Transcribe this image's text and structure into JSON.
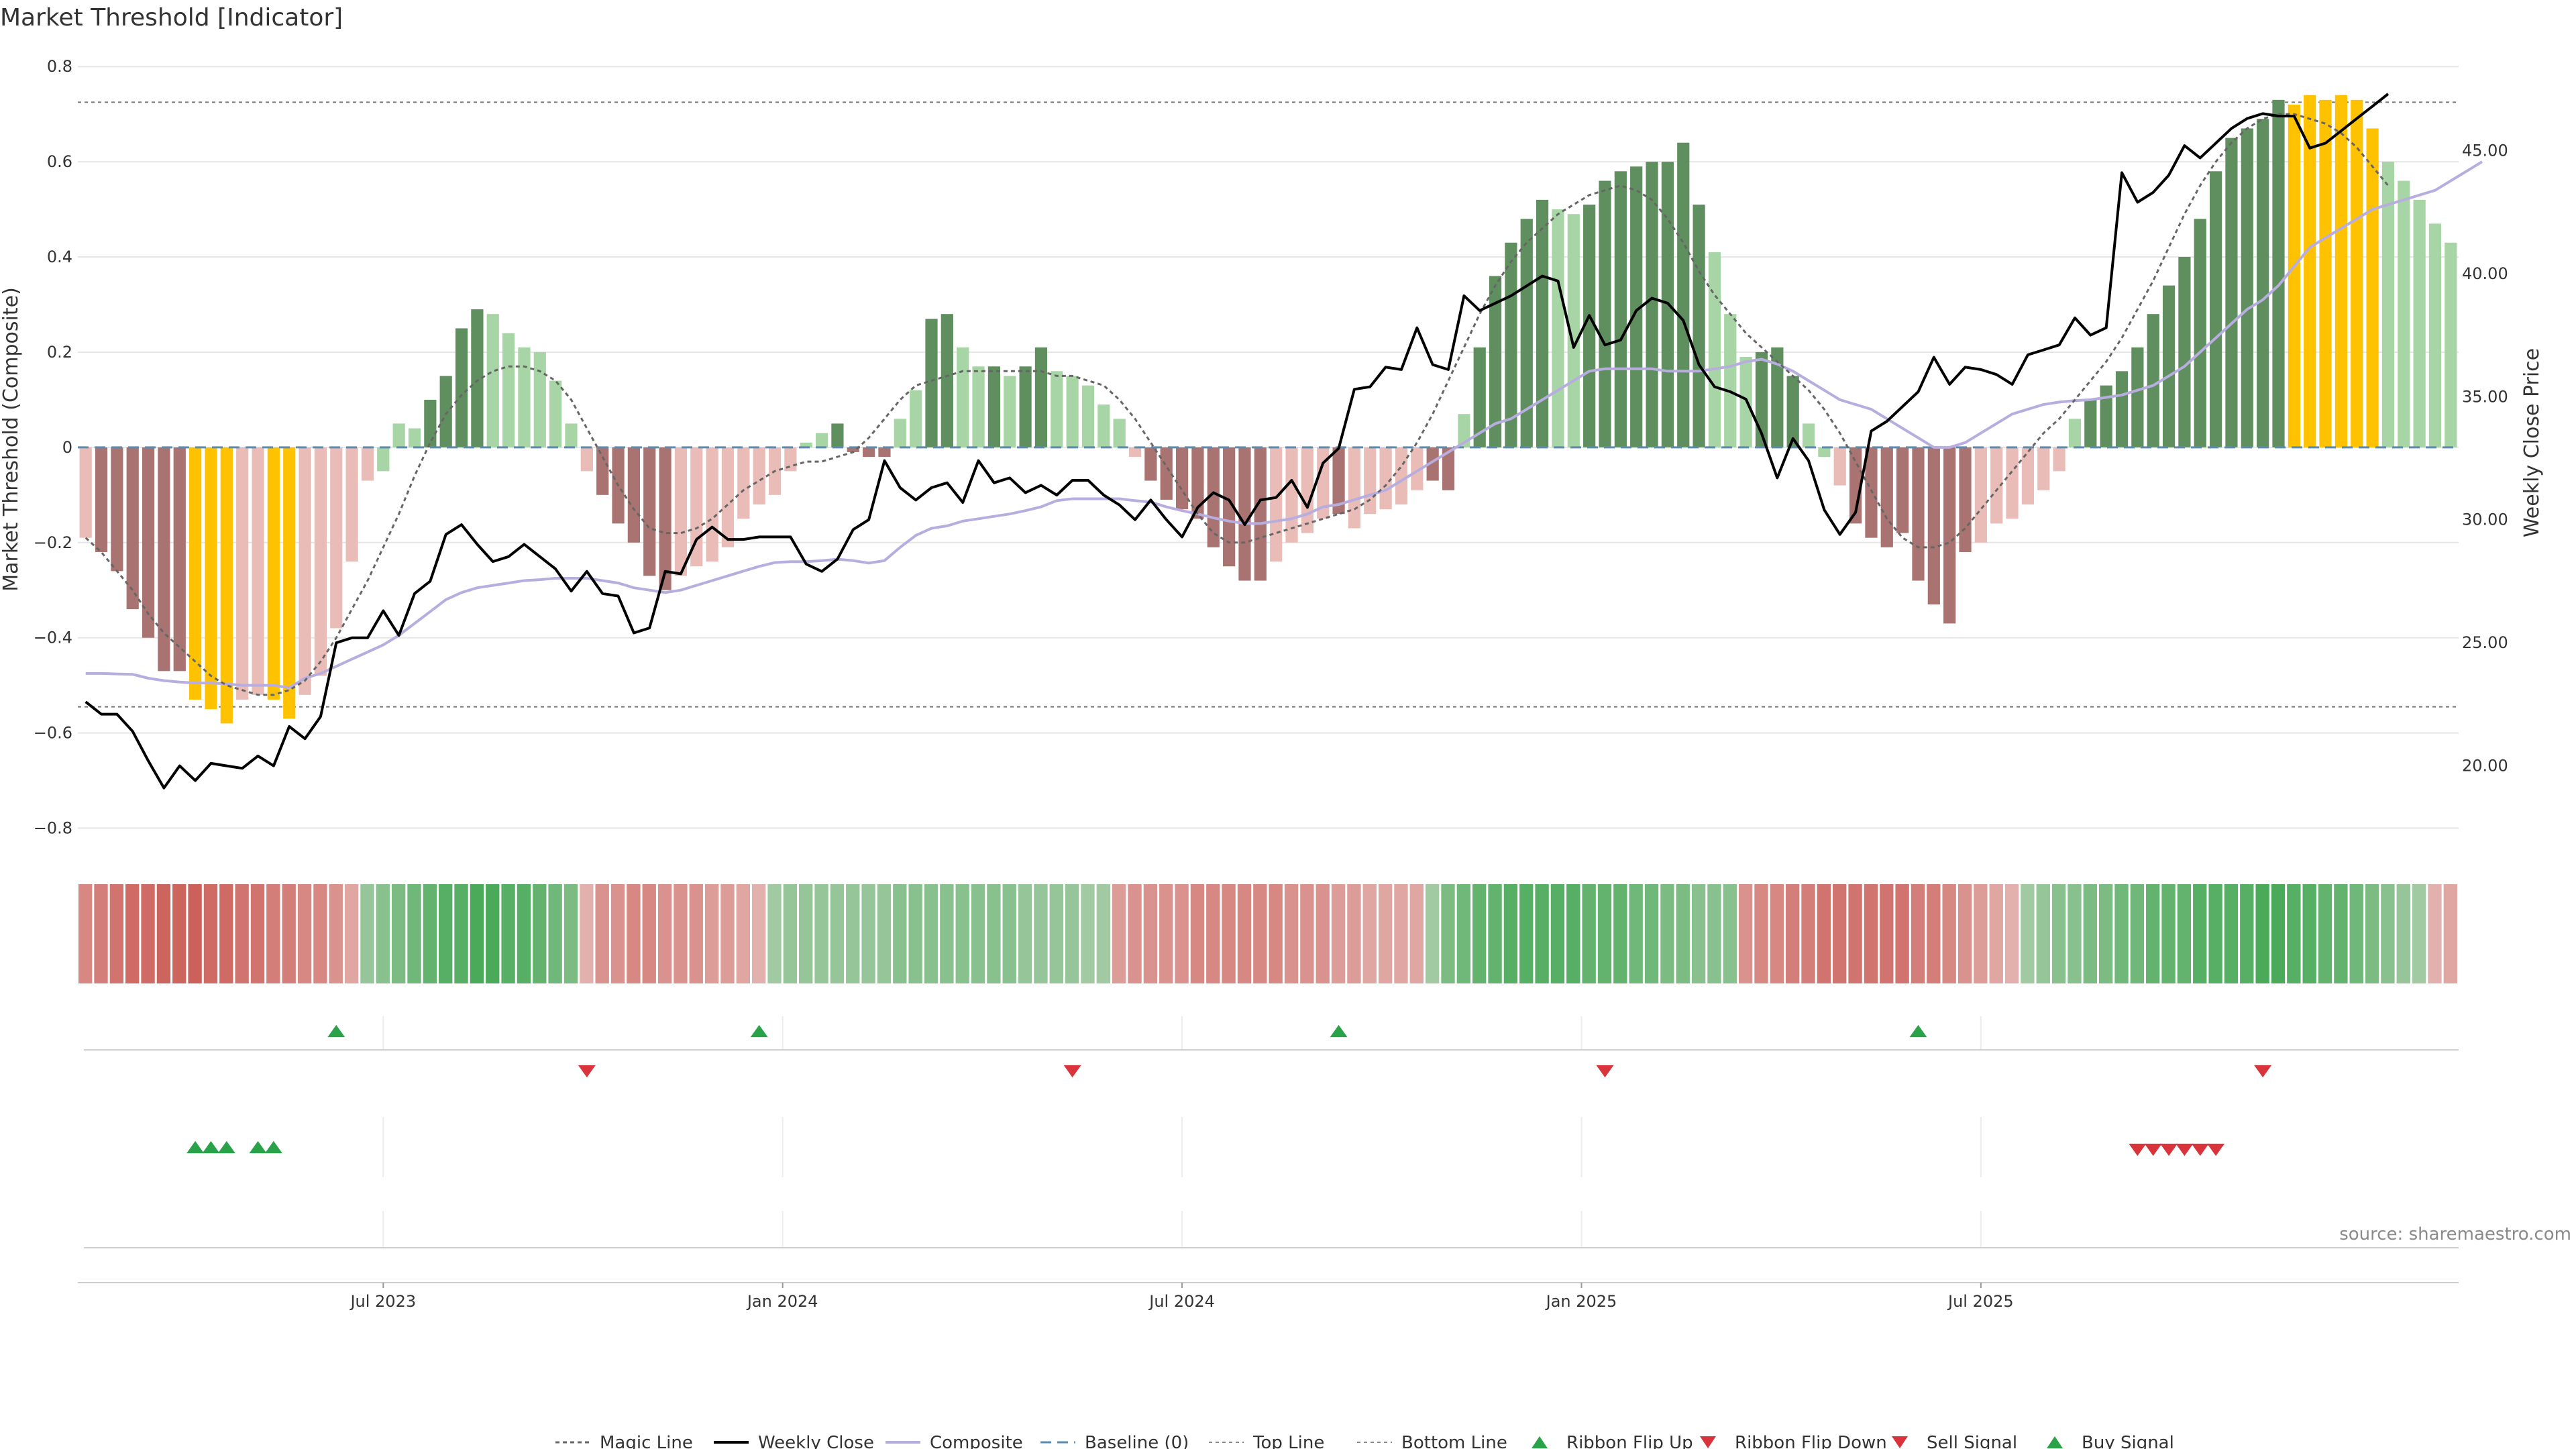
{
  "chart_data": {
    "type": "bar",
    "title": "Market Threshold [Indicator]",
    "ylabel": "Market Threshold (Composite)",
    "y2label": "Weekly Close Price",
    "ylim": [
      -0.85,
      0.82
    ],
    "y2lim": [
      16.5,
      48.8
    ],
    "y_ticks": [
      "0.8",
      "0.6",
      "0.4",
      "0.2",
      "0",
      "−0.2",
      "−0.4",
      "−0.6",
      "−0.8"
    ],
    "y2_ticks": [
      "45.00",
      "40.00",
      "35.00",
      "30.00",
      "25.00",
      "20.00"
    ],
    "x_ticks": [
      "Jul 2023",
      "Jan 2024",
      "Jul 2024",
      "Jan 2025",
      "Jul 2025"
    ],
    "x_tick_weeks": [
      19.5,
      45,
      70.5,
      96,
      121.5
    ],
    "grid": true,
    "top_line": 0.725,
    "bottom_line": -0.545,
    "source": "source: sharemaestro.com",
    "legend_position": "bottom-center",
    "colors": {
      "dark_green": "#5f8f5f",
      "light_green": "#a8d5a5",
      "dark_red": "#a87370",
      "light_red": "#eabcb8",
      "extreme": "#ffc200",
      "weekly_close": "#000000",
      "composite": "#b7addf",
      "magic": "#666666",
      "baseline": "#5a8bb0",
      "signal_green": "#2aa24a",
      "signal_red": "#d9343b",
      "ribbon_green": "#4aaa5a",
      "ribbon_red": "#cc605a"
    },
    "composite_bars": [
      -0.19,
      -0.22,
      -0.26,
      -0.34,
      -0.4,
      -0.47,
      -0.47,
      -0.53,
      -0.55,
      -0.58,
      -0.53,
      -0.52,
      -0.53,
      -0.57,
      -0.52,
      -0.48,
      -0.38,
      -0.24,
      -0.07,
      -0.05,
      0.05,
      0.04,
      0.1,
      0.15,
      0.25,
      0.29,
      0.28,
      0.24,
      0.21,
      0.2,
      0.14,
      0.05,
      -0.05,
      -0.1,
      -0.16,
      -0.2,
      -0.27,
      -0.3,
      -0.27,
      -0.25,
      -0.24,
      -0.21,
      -0.15,
      -0.12,
      -0.1,
      -0.05,
      0.01,
      0.03,
      0.05,
      -0.01,
      -0.02,
      -0.02,
      0.06,
      0.12,
      0.27,
      0.28,
      0.21,
      0.17,
      0.17,
      0.15,
      0.17,
      0.21,
      0.16,
      0.15,
      0.13,
      0.09,
      0.06,
      -0.02,
      -0.07,
      -0.11,
      -0.13,
      -0.15,
      -0.21,
      -0.25,
      -0.28,
      -0.28,
      -0.24,
      -0.2,
      -0.18,
      -0.15,
      -0.14,
      -0.17,
      -0.14,
      -0.13,
      -0.12,
      -0.09,
      -0.07,
      -0.09,
      0.07,
      0.21,
      0.36,
      0.43,
      0.48,
      0.52,
      0.5,
      0.49,
      0.51,
      0.56,
      0.58,
      0.59,
      0.6,
      0.6,
      0.64,
      0.51,
      0.41,
      0.28,
      0.19,
      0.2,
      0.21,
      0.15,
      0.05,
      -0.02,
      -0.08,
      -0.16,
      -0.19,
      -0.21,
      -0.18,
      -0.28,
      -0.33,
      -0.37,
      -0.22,
      -0.2,
      -0.16,
      -0.15,
      -0.12,
      -0.09,
      -0.05,
      0.06,
      0.1,
      0.13,
      0.16,
      0.21,
      0.28,
      0.34,
      0.4,
      0.48,
      0.58,
      0.65,
      0.67,
      0.69,
      0.73,
      0.72,
      0.74,
      0.73,
      0.74,
      0.73,
      0.67,
      0.6,
      0.56,
      0.52,
      0.47,
      0.43
    ],
    "bar_styles": [
      "LR",
      "DR",
      "DR",
      "DR",
      "DR",
      "DR",
      "DR",
      "Y",
      "Y",
      "Y",
      "LR",
      "LR",
      "Y",
      "Y",
      "LR",
      "LR",
      "LR",
      "LR",
      "LR",
      "LG",
      "LG",
      "LG",
      "DG",
      "DG",
      "DG",
      "DG",
      "LG",
      "LG",
      "LG",
      "LG",
      "LG",
      "LG",
      "LR",
      "DR",
      "DR",
      "DR",
      "DR",
      "DR",
      "LR",
      "LR",
      "LR",
      "LR",
      "LR",
      "LR",
      "LR",
      "LR",
      "LG",
      "LG",
      "DG",
      "DR",
      "DR",
      "DR",
      "LG",
      "LG",
      "DG",
      "DG",
      "LG",
      "LG",
      "DG",
      "LG",
      "DG",
      "DG",
      "LG",
      "LG",
      "LG",
      "LG",
      "LG",
      "LR",
      "DR",
      "DR",
      "DR",
      "DR",
      "DR",
      "DR",
      "DR",
      "DR",
      "LR",
      "LR",
      "LR",
      "LR",
      "DR",
      "LR",
      "LR",
      "LR",
      "LR",
      "LR",
      "DR",
      "DR",
      "LG",
      "DG",
      "DG",
      "DG",
      "DG",
      "DG",
      "LG",
      "LG",
      "DG",
      "DG",
      "DG",
      "DG",
      "DG",
      "DG",
      "DG",
      "DG",
      "LG",
      "LG",
      "LG",
      "DG",
      "DG",
      "DG",
      "LG",
      "LG",
      "LR",
      "DR",
      "DR",
      "DR",
      "DR",
      "DR",
      "DR",
      "DR",
      "DR",
      "LR",
      "LR",
      "LR",
      "LR",
      "LR",
      "LR",
      "LG",
      "DG",
      "DG",
      "DG",
      "DG",
      "DG",
      "DG",
      "DG",
      "DG",
      "DG",
      "DG",
      "DG",
      "DG",
      "DG",
      "Y",
      "Y",
      "Y",
      "Y",
      "Y",
      "Y",
      "LG",
      "LG",
      "LG",
      "LG",
      "LG",
      "LG"
    ],
    "weekly_close": [
      22.6,
      22.1,
      22.1,
      21.4,
      20.2,
      19.1,
      20.0,
      19.4,
      20.1,
      20.0,
      19.9,
      20.4,
      20.0,
      21.6,
      21.1,
      22.0,
      25.0,
      25.2,
      25.2,
      26.3,
      25.3,
      27.0,
      27.5,
      29.4,
      29.8,
      29.0,
      28.3,
      28.5,
      29.0,
      28.5,
      28.0,
      27.1,
      27.9,
      27.0,
      26.9,
      25.4,
      25.6,
      27.9,
      27.8,
      29.2,
      29.7,
      29.2,
      29.2,
      29.3,
      29.3,
      29.3,
      28.2,
      27.9,
      28.4,
      29.6,
      30.0,
      32.4,
      31.3,
      30.8,
      31.3,
      31.5,
      30.7,
      32.4,
      31.5,
      31.7,
      31.1,
      31.4,
      31.0,
      31.6,
      31.6,
      31.0,
      30.6,
      30.0,
      30.8,
      30.0,
      29.3,
      30.5,
      31.1,
      30.8,
      29.8,
      30.8,
      30.9,
      31.6,
      30.5,
      32.3,
      32.9,
      35.3,
      35.4,
      36.2,
      36.1,
      37.8,
      36.3,
      36.1,
      39.1,
      38.5,
      38.8,
      39.1,
      39.5,
      39.9,
      39.7,
      37.0,
      38.3,
      37.1,
      37.3,
      38.5,
      39.0,
      38.8,
      38.1,
      36.3,
      35.4,
      35.2,
      34.9,
      33.5,
      31.7,
      33.3,
      32.4,
      30.4,
      29.4,
      30.3,
      33.6,
      34.0,
      34.6,
      35.2,
      36.6,
      35.5,
      36.2,
      36.1,
      35.9,
      35.5,
      36.7,
      36.9,
      37.1,
      38.2,
      37.5,
      37.8,
      44.1,
      42.9,
      43.3,
      44.0,
      45.2,
      44.7,
      45.3,
      45.9,
      46.3,
      46.5,
      46.4,
      46.4,
      45.1,
      45.3,
      45.8,
      46.3,
      46.8,
      47.3
    ],
    "composite_line": [
      -0.475,
      -0.475,
      -0.476,
      -0.477,
      -0.485,
      -0.49,
      -0.493,
      -0.495,
      -0.495,
      -0.497,
      -0.5,
      -0.5,
      -0.5,
      -0.505,
      -0.485,
      -0.475,
      -0.46,
      -0.445,
      -0.43,
      -0.415,
      -0.395,
      -0.37,
      -0.345,
      -0.32,
      -0.305,
      -0.295,
      -0.29,
      -0.285,
      -0.28,
      -0.278,
      -0.275,
      -0.275,
      -0.275,
      -0.28,
      -0.285,
      -0.295,
      -0.3,
      -0.305,
      -0.3,
      -0.29,
      -0.28,
      -0.27,
      -0.26,
      -0.25,
      -0.242,
      -0.24,
      -0.24,
      -0.238,
      -0.235,
      -0.238,
      -0.243,
      -0.238,
      -0.21,
      -0.185,
      -0.17,
      -0.165,
      -0.155,
      -0.15,
      -0.145,
      -0.14,
      -0.133,
      -0.125,
      -0.112,
      -0.108,
      -0.108,
      -0.108,
      -0.108,
      -0.112,
      -0.115,
      -0.125,
      -0.133,
      -0.14,
      -0.148,
      -0.155,
      -0.16,
      -0.16,
      -0.155,
      -0.15,
      -0.14,
      -0.125,
      -0.12,
      -0.11,
      -0.1,
      -0.09,
      -0.07,
      -0.05,
      -0.03,
      -0.01,
      0.01,
      0.03,
      0.05,
      0.06,
      0.08,
      0.1,
      0.12,
      0.14,
      0.16,
      0.165,
      0.165,
      0.165,
      0.165,
      0.16,
      0.16,
      0.16,
      0.165,
      0.17,
      0.18,
      0.185,
      0.175,
      0.16,
      0.14,
      0.12,
      0.1,
      0.09,
      0.08,
      0.06,
      0.04,
      0.02,
      0.0,
      0.0,
      0.01,
      0.03,
      0.05,
      0.07,
      0.08,
      0.09,
      0.095,
      0.098,
      0.1,
      0.105,
      0.11,
      0.12,
      0.13,
      0.15,
      0.17,
      0.2,
      0.23,
      0.26,
      0.29,
      0.31,
      0.34,
      0.38,
      0.42,
      0.44,
      0.46,
      0.48,
      0.5,
      0.51,
      0.52,
      0.53,
      0.54,
      0.56,
      0.58,
      0.6
    ],
    "magic_line": [
      -0.19,
      -0.22,
      -0.26,
      -0.3,
      -0.35,
      -0.39,
      -0.42,
      -0.45,
      -0.48,
      -0.5,
      -0.51,
      -0.52,
      -0.52,
      -0.51,
      -0.49,
      -0.45,
      -0.4,
      -0.34,
      -0.28,
      -0.21,
      -0.14,
      -0.06,
      0.01,
      0.07,
      0.11,
      0.14,
      0.16,
      0.17,
      0.17,
      0.16,
      0.14,
      0.1,
      0.04,
      -0.02,
      -0.08,
      -0.13,
      -0.17,
      -0.18,
      -0.18,
      -0.17,
      -0.15,
      -0.12,
      -0.09,
      -0.07,
      -0.05,
      -0.04,
      -0.03,
      -0.03,
      -0.02,
      -0.01,
      0.02,
      0.06,
      0.1,
      0.13,
      0.14,
      0.15,
      0.16,
      0.16,
      0.16,
      0.16,
      0.16,
      0.16,
      0.15,
      0.15,
      0.14,
      0.13,
      0.1,
      0.06,
      0.01,
      -0.04,
      -0.09,
      -0.14,
      -0.18,
      -0.2,
      -0.2,
      -0.19,
      -0.18,
      -0.17,
      -0.16,
      -0.15,
      -0.14,
      -0.13,
      -0.11,
      -0.08,
      -0.04,
      0.01,
      0.07,
      0.14,
      0.21,
      0.28,
      0.34,
      0.39,
      0.43,
      0.46,
      0.49,
      0.51,
      0.53,
      0.54,
      0.55,
      0.54,
      0.52,
      0.48,
      0.43,
      0.37,
      0.32,
      0.28,
      0.24,
      0.21,
      0.18,
      0.15,
      0.12,
      0.08,
      0.03,
      -0.03,
      -0.09,
      -0.15,
      -0.19,
      -0.21,
      -0.21,
      -0.2,
      -0.17,
      -0.13,
      -0.09,
      -0.05,
      -0.01,
      0.03,
      0.06,
      0.1,
      0.14,
      0.18,
      0.23,
      0.29,
      0.35,
      0.42,
      0.49,
      0.55,
      0.6,
      0.64,
      0.67,
      0.69,
      0.7,
      0.7,
      0.69,
      0.68,
      0.66,
      0.63,
      0.59,
      0.55
    ],
    "ribbon": [
      -0.6,
      -0.7,
      -0.8,
      -0.9,
      -0.9,
      -0.95,
      -0.95,
      -1.0,
      -0.9,
      -0.9,
      -0.8,
      -0.8,
      -0.7,
      -0.7,
      -0.6,
      -0.6,
      -0.5,
      -0.3,
      0.4,
      0.5,
      0.6,
      0.7,
      0.8,
      0.9,
      0.9,
      1.0,
      1.0,
      0.9,
      0.9,
      0.8,
      0.7,
      0.6,
      -0.2,
      -0.5,
      -0.5,
      -0.6,
      -0.6,
      -0.5,
      -0.5,
      -0.5,
      -0.4,
      -0.4,
      -0.3,
      -0.2,
      0.3,
      0.4,
      0.4,
      0.4,
      0.4,
      0.4,
      0.4,
      0.4,
      0.5,
      0.5,
      0.5,
      0.5,
      0.5,
      0.5,
      0.5,
      0.5,
      0.4,
      0.4,
      0.4,
      0.4,
      0.3,
      0.3,
      -0.4,
      -0.5,
      -0.5,
      -0.5,
      -0.5,
      -0.6,
      -0.6,
      -0.6,
      -0.6,
      -0.6,
      -0.6,
      -0.5,
      -0.5,
      -0.5,
      -0.4,
      -0.4,
      -0.3,
      -0.3,
      -0.3,
      -0.3,
      0.3,
      0.6,
      0.7,
      0.8,
      0.8,
      0.9,
      0.9,
      0.9,
      0.9,
      0.9,
      0.8,
      0.8,
      0.8,
      0.7,
      0.7,
      0.6,
      0.6,
      0.5,
      0.5,
      0.5,
      -0.5,
      -0.6,
      -0.6,
      -0.7,
      -0.7,
      -0.8,
      -0.8,
      -0.8,
      -0.8,
      -0.8,
      -0.8,
      -0.7,
      -0.7,
      -0.6,
      -0.5,
      -0.4,
      -0.3,
      -0.2,
      0.3,
      0.4,
      0.5,
      0.5,
      0.6,
      0.6,
      0.7,
      0.7,
      0.8,
      0.8,
      0.8,
      0.9,
      0.9,
      0.9,
      0.9,
      1.0,
      1.0,
      0.9,
      0.9,
      0.8,
      0.8,
      0.7,
      0.6,
      0.5,
      0.4,
      0.3,
      -0.2,
      -0.3
    ],
    "ribbon_flip_up_weeks": [
      16,
      43,
      80,
      117
    ],
    "ribbon_flip_down_weeks": [
      32,
      63,
      97,
      139
    ],
    "buy_signal_weeks": [
      7,
      8,
      9,
      11,
      12
    ],
    "sell_signal_weeks": [
      131,
      132,
      133,
      134,
      135,
      136
    ],
    "legend": [
      {
        "label": "Magic Line",
        "kind": "magic"
      },
      {
        "label": "Weekly Close",
        "kind": "close"
      },
      {
        "label": "Composite",
        "kind": "composite"
      },
      {
        "label": "Baseline (0)",
        "kind": "baseline"
      },
      {
        "label": "Top Line",
        "kind": "topline"
      },
      {
        "label": "Bottom Line",
        "kind": "bottomline"
      },
      {
        "label": "Ribbon Flip Up",
        "kind": "flipup"
      },
      {
        "label": "Ribbon Flip Down",
        "kind": "flipdown"
      },
      {
        "label": "Sell Signal",
        "kind": "sell"
      },
      {
        "label": "Buy Signal",
        "kind": "buy"
      }
    ]
  }
}
